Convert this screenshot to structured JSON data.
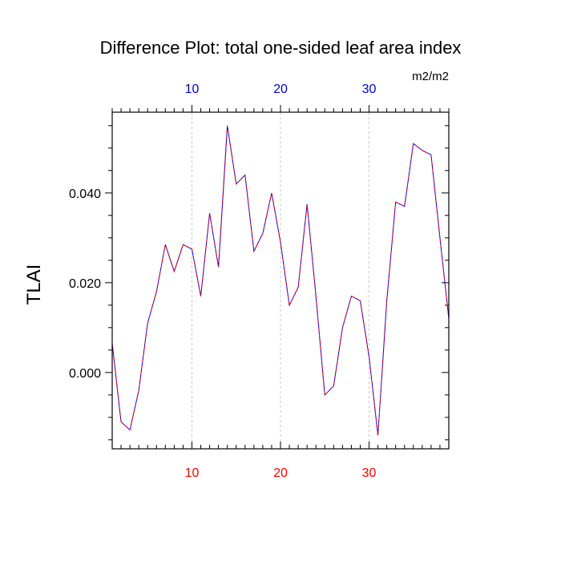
{
  "chart_data": {
    "type": "line",
    "title": "Difference Plot: total one-sided leaf area index",
    "units": "m2/m2",
    "ylabel": "TLAI",
    "xlabel": "",
    "xlim": [
      1,
      39
    ],
    "ylim": [
      -0.017,
      0.058
    ],
    "x_ticks": [
      10,
      20,
      30
    ],
    "y_ticks": [
      0.0,
      0.02,
      0.04
    ],
    "y_tick_labels": [
      "0.000",
      "0.020",
      "0.040"
    ],
    "x_tick_labels_bottom": [
      "10",
      "20",
      "30"
    ],
    "x_tick_labels_top": [
      "10",
      "20",
      "30"
    ],
    "grid": "vertical dashed at major x ticks",
    "colors": {
      "line_solid": "#0000ff",
      "line_dash": "#ff0000",
      "top_tick_labels": "#0000cc",
      "bottom_tick_labels": "#ff0000",
      "grid": "#bbbbbb"
    },
    "series": [
      {
        "x": [
          1,
          2,
          3,
          4,
          5,
          6,
          7,
          8,
          9,
          10,
          11,
          12,
          13,
          14,
          15,
          16,
          17,
          18,
          19,
          20,
          21,
          22,
          23,
          24,
          25,
          26,
          27,
          28,
          29,
          30,
          31,
          32,
          33,
          34,
          35,
          36,
          37,
          38,
          39
        ],
        "values": [
          0.0065,
          -0.011,
          -0.0128,
          -0.004,
          0.011,
          0.018,
          0.0285,
          0.0225,
          0.0285,
          0.0275,
          0.017,
          0.0355,
          0.0235,
          0.055,
          0.042,
          0.044,
          0.027,
          0.031,
          0.04,
          0.029,
          0.015,
          0.019,
          0.0375,
          0.017,
          -0.005,
          -0.003,
          0.01,
          0.017,
          0.016,
          0.0035,
          -0.014,
          0.016,
          0.038,
          0.037,
          0.051,
          0.0495,
          0.0485,
          0.03,
          0.012
        ]
      }
    ]
  }
}
